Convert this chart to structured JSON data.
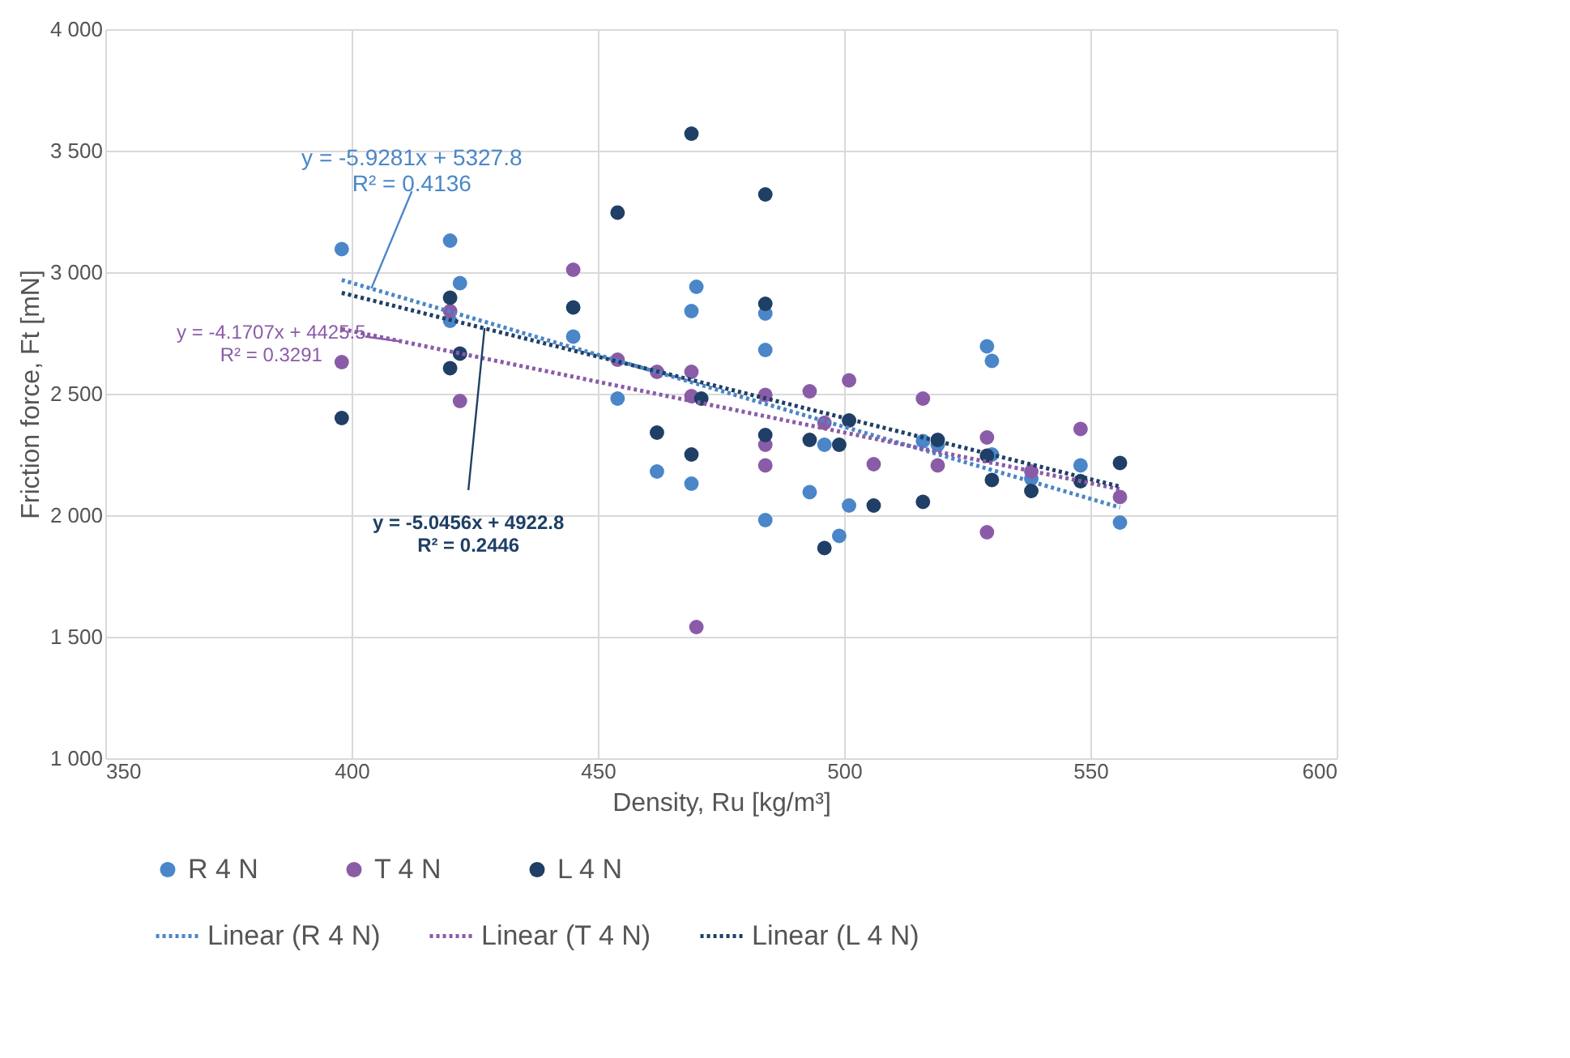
{
  "chart_data": {
    "type": "scatter",
    "xlabel": "Density, Ru [kg/m³]",
    "ylabel": "Friction force, Ft [mN]",
    "xlim": [
      350,
      600
    ],
    "xticks": [
      350,
      400,
      450,
      500,
      550,
      600
    ],
    "ylim": [
      1000,
      4000
    ],
    "yticks": [
      {
        "value": 1000,
        "label": "1 000"
      },
      {
        "value": 1500,
        "label": "1 500"
      },
      {
        "value": 2000,
        "label": "2 000"
      },
      {
        "value": 2500,
        "label": "2 500"
      },
      {
        "value": 3000,
        "label": "3 000"
      },
      {
        "value": 3500,
        "label": "3 500"
      },
      {
        "value": 4000,
        "label": "4 000"
      }
    ],
    "grid": true,
    "legend": "bottom",
    "marker": "circle",
    "series": [
      {
        "name": "R 4 N",
        "color": "#4a86c8",
        "x": [
          398,
          420,
          420,
          422,
          445,
          454,
          462,
          469,
          470,
          469,
          484,
          484,
          484,
          493,
          496,
          499,
          501,
          516,
          519,
          529,
          530,
          530,
          538,
          548,
          556
        ],
        "values": [
          3095,
          3130,
          2800,
          2955,
          2735,
          2480,
          2180,
          2840,
          2940,
          2130,
          2830,
          2680,
          1980,
          2095,
          2290,
          1915,
          2040,
          2305,
          2290,
          2695,
          2635,
          2250,
          2150,
          2205,
          1970
        ]
      },
      {
        "name": "T 4 N",
        "color": "#8a5ca8",
        "x": [
          398,
          420,
          422,
          445,
          454,
          462,
          469,
          469,
          470,
          484,
          484,
          484,
          493,
          496,
          501,
          506,
          516,
          519,
          529,
          529,
          538,
          548,
          556
        ],
        "values": [
          2630,
          2840,
          2470,
          3010,
          2640,
          2590,
          2590,
          2490,
          1540,
          2495,
          2290,
          2205,
          2510,
          2380,
          2555,
          2210,
          2480,
          2205,
          2320,
          1930,
          2180,
          2355,
          2075
        ]
      },
      {
        "name": "L 4 N",
        "color": "#1f3f66",
        "x": [
          398,
          420,
          420,
          422,
          445,
          454,
          462,
          469,
          469,
          471,
          484,
          484,
          484,
          493,
          496,
          499,
          501,
          506,
          516,
          519,
          529,
          530,
          538,
          548,
          556
        ],
        "values": [
          2400,
          2895,
          2605,
          2665,
          2855,
          3245,
          2340,
          3570,
          2250,
          2480,
          3320,
          2870,
          2330,
          2310,
          1865,
          2290,
          2390,
          2040,
          2055,
          2310,
          2245,
          2145,
          2100,
          2140,
          2215
        ]
      },
      {
        "name": "Linear (R 4 N)",
        "color": "#4a86c8",
        "type": "line",
        "line_style": "dotted",
        "marker": "none",
        "x": [
          398,
          556
        ],
        "values": [
          2968,
          2032
        ]
      },
      {
        "name": "Linear (T 4 N)",
        "color": "#8a5ca8",
        "type": "line",
        "line_style": "dotted",
        "marker": "none",
        "x": [
          398,
          556
        ],
        "values": [
          2766,
          2107
        ]
      },
      {
        "name": "Linear (L 4 N)",
        "color": "#1f3f66",
        "type": "line",
        "line_style": "dotted",
        "marker": "none",
        "x": [
          398,
          556
        ],
        "values": [
          2915,
          2118
        ]
      }
    ],
    "annotations": [
      {
        "text": "y = -5.9281x + 5327.8\nR² = 0.4136",
        "x": 404,
        "y": 2933
      },
      {
        "text": "y = -4.1707x + 4425.5\nR² = 0.3291",
        "x": 410,
        "y": 2715
      },
      {
        "text": "y = -5.0456x + 4922.8\nR² = 0.2446",
        "x": 427,
        "y": 2770
      }
    ]
  }
}
